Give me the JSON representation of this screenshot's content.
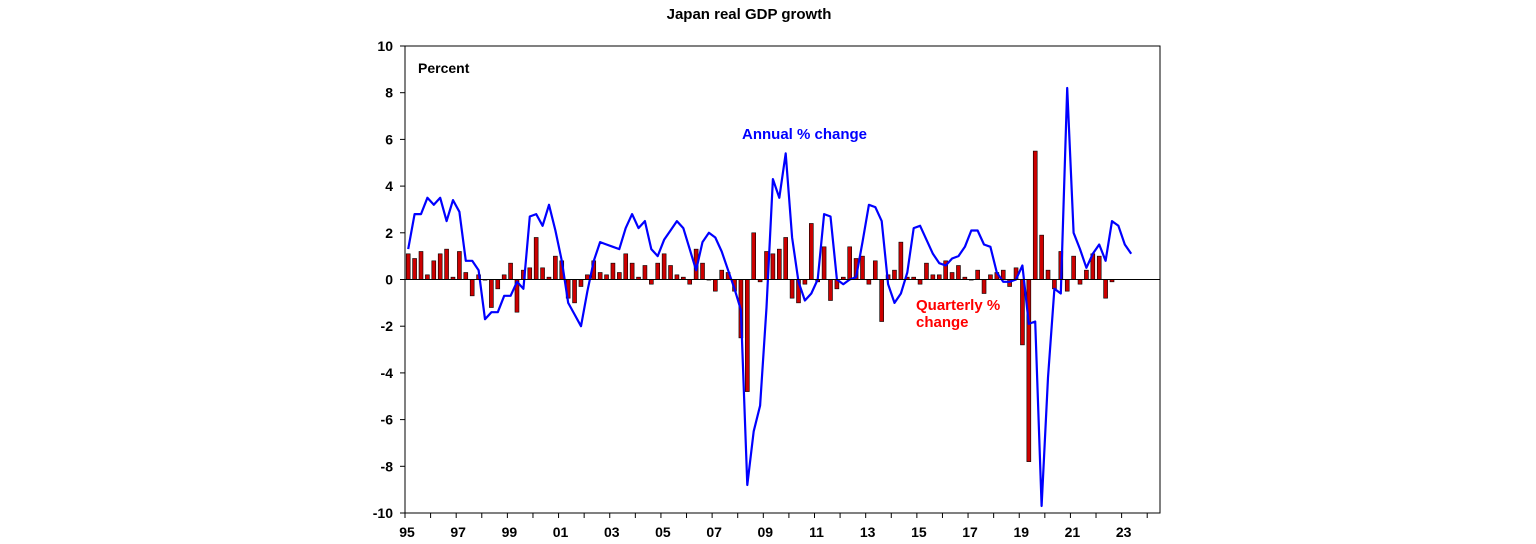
{
  "chart_data": {
    "type": "bar+line",
    "title": "Japan real GDP growth",
    "ylabel": "Percent",
    "ylim": [
      -10,
      10
    ],
    "y_ticks": [
      "10",
      "8",
      "6",
      "4",
      "2",
      "0",
      "-2",
      "-4",
      "-6",
      "-8",
      "-10"
    ],
    "x_start": 1995.0,
    "x_end": 2024.5,
    "x_tick_labels": [
      "95",
      "97",
      "99",
      "01",
      "03",
      "05",
      "07",
      "09",
      "11",
      "13",
      "15",
      "17",
      "19",
      "21",
      "23"
    ],
    "x_tick_years": [
      1995,
      1997,
      1999,
      2001,
      2003,
      2005,
      2007,
      2009,
      2011,
      2013,
      2015,
      2017,
      2019,
      2021,
      2023
    ],
    "annual_label": "Annual % change",
    "quarterly_label_line1": "Quarterly %",
    "quarterly_label_line2": "change",
    "colors": {
      "annual": "#0000ff",
      "bars": "#cc0000",
      "bar_outline": "#000000",
      "quarterly_text": "#ff0000"
    },
    "series": [
      {
        "name": "Quarterly % change",
        "start": 1995.0,
        "step": 0.25,
        "values": [
          1.1,
          0.9,
          1.2,
          0.2,
          0.8,
          1.1,
          1.3,
          0.1,
          1.2,
          0.3,
          -0.7,
          0.2,
          0.0,
          -1.2,
          -0.4,
          0.2,
          0.7,
          -1.4,
          0.4,
          0.5,
          1.8,
          0.5,
          0.1,
          1.0,
          0.8,
          -0.8,
          -1.0,
          -0.3,
          0.2,
          0.8,
          0.3,
          0.2,
          0.7,
          0.3,
          1.1,
          0.7,
          0.1,
          0.6,
          -0.2,
          0.7,
          1.1,
          0.6,
          0.2,
          0.1,
          -0.2,
          1.3,
          0.7,
          0.0,
          -0.5,
          0.4,
          0.3,
          -0.5,
          -2.5,
          -4.8,
          2.0,
          -0.1,
          1.2,
          1.1,
          1.3,
          1.8,
          -0.8,
          -1.0,
          -0.2,
          2.4,
          -0.1,
          1.4,
          -0.9,
          -0.4,
          0.1,
          1.4,
          0.9,
          1.0,
          -0.2,
          0.8,
          -1.8,
          0.2,
          0.4,
          1.6,
          0.1,
          0.1,
          -0.2,
          0.7,
          0.2,
          0.2,
          0.8,
          0.3,
          0.6,
          0.1,
          0.0,
          0.4,
          -0.6,
          0.2,
          0.3,
          0.4,
          -0.3,
          0.5,
          -2.8,
          -7.8,
          5.5,
          1.9,
          0.4,
          -0.4,
          1.2,
          -0.5,
          1.0,
          -0.2,
          0.4,
          1.1,
          1.0,
          -0.8,
          -0.1
        ]
      },
      {
        "name": "Annual % change",
        "start": 1995.0,
        "step": 0.25,
        "values": [
          1.3,
          2.8,
          2.8,
          3.5,
          3.2,
          3.5,
          2.5,
          3.4,
          2.9,
          0.8,
          0.8,
          0.4,
          -1.7,
          -1.4,
          -1.4,
          -0.7,
          -0.7,
          -0.1,
          -0.4,
          2.7,
          2.8,
          2.3,
          3.2,
          2.1,
          0.8,
          -1.0,
          -1.5,
          -2.0,
          -0.5,
          0.8,
          1.6,
          1.5,
          1.4,
          1.3,
          2.2,
          2.8,
          2.2,
          2.5,
          1.3,
          1.0,
          1.7,
          2.1,
          2.5,
          2.2,
          1.3,
          0.4,
          1.6,
          2.0,
          1.8,
          1.2,
          0.4,
          -0.4,
          -1.3,
          -8.8,
          -6.5,
          -5.4,
          -1.2,
          4.3,
          3.5,
          5.4,
          1.8,
          -0.1,
          -0.9,
          -0.6,
          0.0,
          2.8,
          2.7,
          0.0,
          -0.2,
          0.0,
          0.1,
          1.6,
          3.2,
          3.1,
          2.5,
          -0.2,
          -1.0,
          -0.6,
          0.3,
          2.2,
          2.3,
          1.7,
          1.1,
          0.7,
          0.6,
          0.9,
          1.0,
          1.4,
          2.1,
          2.1,
          1.5,
          1.4,
          0.3,
          -0.1,
          -0.1,
          0.0,
          0.6,
          -1.9,
          -1.8,
          -9.7,
          -4.2,
          -0.4,
          -0.6,
          8.2,
          2.0,
          1.3,
          0.5,
          1.1,
          1.5,
          0.8,
          2.5,
          2.3,
          1.5,
          1.1
        ]
      }
    ]
  }
}
